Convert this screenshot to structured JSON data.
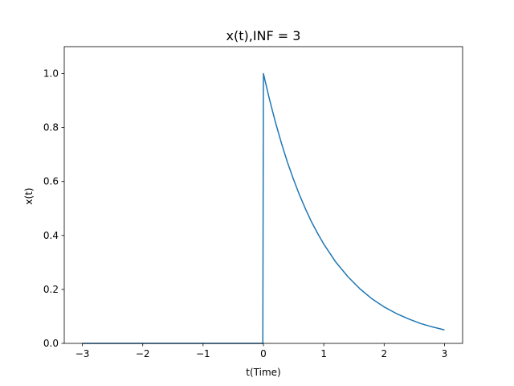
{
  "chart_data": {
    "type": "line",
    "title": "x(t),INF = 3",
    "xlabel": "t(Time)",
    "ylabel": "x(t)",
    "xlim": [
      -3.3,
      3.3
    ],
    "ylim": [
      0.0,
      1.1
    ],
    "grid": false,
    "line_color": "#1f77b4",
    "xticks": [
      {
        "value": -3,
        "label": "−3"
      },
      {
        "value": -2,
        "label": "−2"
      },
      {
        "value": -1,
        "label": "−1"
      },
      {
        "value": 0,
        "label": "0"
      },
      {
        "value": 1,
        "label": "1"
      },
      {
        "value": 2,
        "label": "2"
      },
      {
        "value": 3,
        "label": "3"
      }
    ],
    "yticks": [
      {
        "value": 0.0,
        "label": "0.0"
      },
      {
        "value": 0.2,
        "label": "0.2"
      },
      {
        "value": 0.4,
        "label": "0.4"
      },
      {
        "value": 0.6,
        "label": "0.6"
      },
      {
        "value": 0.8,
        "label": "0.8"
      },
      {
        "value": 1.0,
        "label": "1.0"
      }
    ],
    "series": [
      {
        "x": [
          -3.0,
          -2.0,
          -1.0,
          -0.01,
          0.0,
          0.1,
          0.2,
          0.3,
          0.4,
          0.5,
          0.6,
          0.7,
          0.8,
          0.9,
          1.0,
          1.2,
          1.4,
          1.6,
          1.8,
          2.0,
          2.2,
          2.4,
          2.6,
          2.8,
          3.0
        ],
        "y": [
          0.0,
          0.0,
          0.0,
          0.0,
          1.0,
          0.905,
          0.819,
          0.741,
          0.67,
          0.607,
          0.549,
          0.497,
          0.449,
          0.407,
          0.368,
          0.301,
          0.247,
          0.202,
          0.165,
          0.135,
          0.111,
          0.091,
          0.074,
          0.061,
          0.05
        ]
      }
    ]
  }
}
